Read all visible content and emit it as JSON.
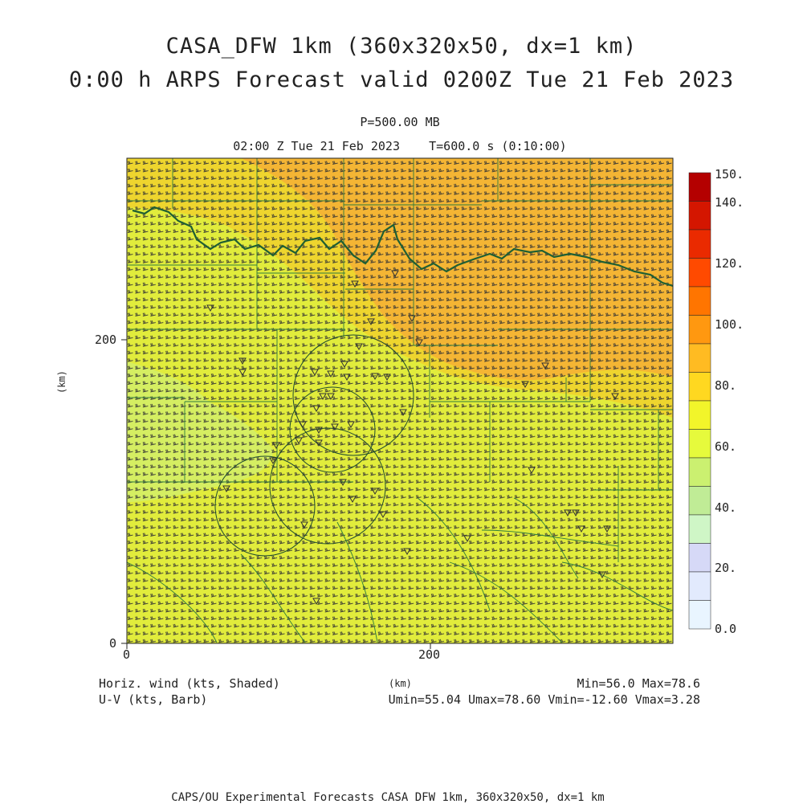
{
  "title": {
    "line1": "CASA_DFW 1km (360x320x50, dx=1 km)",
    "line2": "0:00 h ARPS Forecast valid 0200Z Tue 21 Feb 2023"
  },
  "pressure_level": "P=500.00 MB",
  "time_line": "02:00 Z Tue 21 Feb 2023    T=600.0 s (0:10:00)",
  "axes": {
    "x_unit": "(km)",
    "y_unit": "(km)",
    "x_ticks": [
      "0",
      "200"
    ],
    "y_ticks": [
      "0",
      "200"
    ]
  },
  "colorbar": {
    "labels": [
      "150.",
      "140.",
      "120.",
      "100.",
      "80.",
      "60.",
      "40.",
      "20.",
      "0.0"
    ],
    "colors": [
      "#b40000",
      "#d41600",
      "#ea2a00",
      "#ff4a00",
      "#ff7500",
      "#ff9810",
      "#ffbb22",
      "#ffd820",
      "#f2f52a",
      "#e6fa3c",
      "#cbf070",
      "#c0ec96",
      "#cff6c6",
      "#d6d9f7",
      "#e2eafd",
      "#e9f5ff"
    ]
  },
  "field_colors": {
    "orange": "#f4b534",
    "yellow_orange": "#f0d62c",
    "yellow": "#e1ec3c",
    "green_yellow": "#d0ee70",
    "contour_green": "#1f6b3a",
    "barb": "#333333"
  },
  "legend": {
    "shaded": "Horiz. wind (kts, Shaded)",
    "barb": "U-V (kts, Barb)",
    "minmax": "Min=56.0 Max=78.6",
    "uv_minmax": "Umin=55.04 Umax=78.60 Vmin=-12.60 Vmax=3.28"
  },
  "footer": "CAPS/OU Experimental Forecasts  CASA DFW 1km, 360x320x50, dx=1 km",
  "chart_data": {
    "type": "heatmap",
    "title": "CASA_DFW 1km (360x320x50, dx=1 km)",
    "variable": "Horiz. wind (kts, Shaded)",
    "xlabel": "(km)",
    "ylabel": "(km)",
    "xlim": [
      0,
      360
    ],
    "ylim": [
      0,
      320
    ],
    "colorbar_range": [
      0,
      150
    ],
    "min": 56.0,
    "max": 78.6,
    "umin": 55.04,
    "umax": 78.6,
    "vmin": -12.6,
    "vmax": 3.28
  }
}
